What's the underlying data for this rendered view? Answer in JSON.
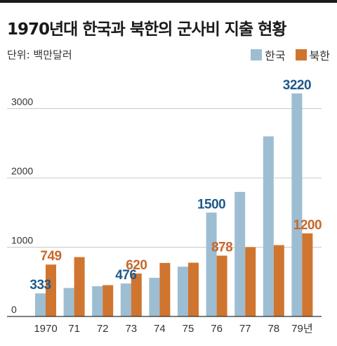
{
  "chart_data": {
    "type": "bar",
    "title": "1970년대 한국과 북한의 군사비 지출 현황",
    "unit_label": "단위: 백만달러",
    "categories": [
      "1970",
      "71",
      "72",
      "73",
      "74",
      "75",
      "76",
      "77",
      "78",
      "79년"
    ],
    "series": [
      {
        "name": "한국",
        "color": "#9dbdd2",
        "values": [
          333,
          411,
          436,
          476,
          558,
          719,
          1500,
          1798,
          2600,
          3220
        ]
      },
      {
        "name": "북한",
        "color": "#d0752f",
        "values": [
          749,
          857,
          452,
          620,
          773,
          776,
          878,
          1000,
          1030,
          1200
        ]
      }
    ],
    "labeled_points": [
      {
        "series": 0,
        "index": 0,
        "text": "333"
      },
      {
        "series": 1,
        "index": 0,
        "text": "749"
      },
      {
        "series": 0,
        "index": 3,
        "text": "476"
      },
      {
        "series": 1,
        "index": 3,
        "text": "620"
      },
      {
        "series": 0,
        "index": 6,
        "text": "1500"
      },
      {
        "series": 1,
        "index": 6,
        "text": "878"
      },
      {
        "series": 0,
        "index": 9,
        "text": "3220"
      },
      {
        "series": 1,
        "index": 9,
        "text": "1200"
      }
    ],
    "label_colors": [
      "#1f5a8a",
      "#c8672a"
    ],
    "yticks": [
      0,
      1000,
      2000,
      3000
    ],
    "ylim": [
      0,
      3300
    ],
    "grid": true,
    "legend_position": "top-right"
  }
}
